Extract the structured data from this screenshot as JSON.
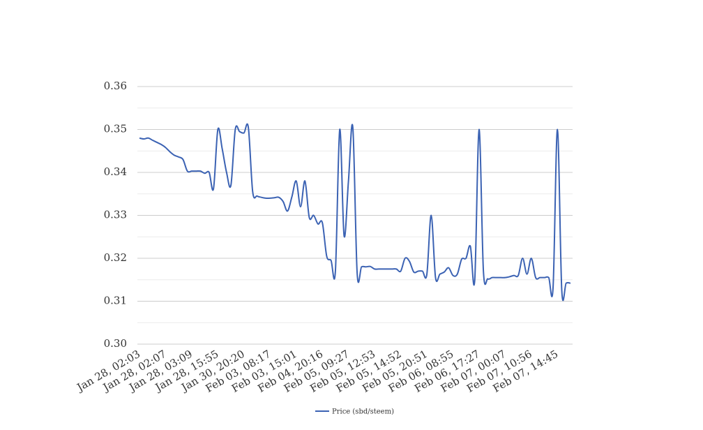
{
  "chart_data": {
    "type": "line",
    "categories": [
      "Jan 28, 02:03",
      null,
      null,
      null,
      null,
      null,
      "Jan 28, 02:07",
      null,
      null,
      null,
      null,
      null,
      "Jan 28, 03:09",
      null,
      null,
      null,
      null,
      null,
      "Jan 28, 15:55",
      null,
      null,
      null,
      null,
      null,
      "Jan 30, 20:20",
      null,
      null,
      null,
      null,
      null,
      "Feb 03, 08:17",
      null,
      null,
      null,
      null,
      null,
      "Feb 03, 15:01",
      null,
      null,
      null,
      null,
      null,
      "Feb 04, 20:16",
      null,
      null,
      null,
      null,
      null,
      "Feb 05, 09:27",
      null,
      null,
      null,
      null,
      null,
      "Feb 05, 12:53",
      null,
      null,
      null,
      null,
      null,
      "Feb 05, 14:52",
      null,
      null,
      null,
      null,
      null,
      "Feb 05, 20:51",
      null,
      null,
      null,
      null,
      null,
      "Feb 06, 08:55",
      null,
      null,
      null,
      null,
      null,
      "Feb 06, 17:27",
      null,
      null,
      null,
      null,
      null,
      "Feb 07, 00:07",
      null,
      null,
      null,
      null,
      null,
      "Feb 07, 10:56",
      null,
      null,
      null,
      null,
      null,
      "Feb 07, 14:45",
      null,
      null,
      null
    ],
    "series": [
      {
        "name": "Price (sbd/steem)",
        "color": "#3b62b3",
        "values": [
          0.348,
          0.3478,
          0.348,
          0.3475,
          0.347,
          0.3465,
          0.3458,
          0.3448,
          0.344,
          0.3436,
          0.343,
          0.3403,
          0.3403,
          0.3403,
          0.3403,
          0.3398,
          0.34,
          0.3362,
          0.35,
          0.3455,
          0.34,
          0.337,
          0.35,
          0.3495,
          0.3492,
          0.3505,
          0.3355,
          0.3345,
          0.3342,
          0.334,
          0.334,
          0.3341,
          0.3342,
          0.3332,
          0.331,
          0.3343,
          0.338,
          0.332,
          0.338,
          0.3295,
          0.33,
          0.328,
          0.3283,
          0.3205,
          0.3195,
          0.317,
          0.35,
          0.3252,
          0.338,
          0.3505,
          0.3165,
          0.318,
          0.318,
          0.3181,
          0.3175,
          0.3175,
          0.3175,
          0.3175,
          0.3175,
          0.3175,
          0.317,
          0.32,
          0.3193,
          0.3168,
          0.317,
          0.317,
          0.3162,
          0.33,
          0.3155,
          0.3163,
          0.3168,
          0.3178,
          0.316,
          0.3163,
          0.3198,
          0.32,
          0.3228,
          0.3148,
          0.35,
          0.317,
          0.3152,
          0.3155,
          0.3155,
          0.3155,
          0.3155,
          0.3157,
          0.316,
          0.316,
          0.32,
          0.3163,
          0.32,
          0.3155,
          0.3155,
          0.3155,
          0.3155,
          0.3132,
          0.35,
          0.3125,
          0.3142,
          0.3142
        ]
      }
    ],
    "ylim": [
      0.3,
      0.36
    ],
    "yticks": [
      {
        "value": 0.3,
        "label": "0.30"
      },
      {
        "value": 0.31,
        "label": "0.31"
      },
      {
        "value": 0.32,
        "label": "0.32"
      },
      {
        "value": 0.33,
        "label": "0.33"
      },
      {
        "value": 0.34,
        "label": "0.34"
      },
      {
        "value": 0.35,
        "label": "0.35"
      },
      {
        "value": 0.36,
        "label": "0.36"
      }
    ],
    "minor_yticks": [
      0.305,
      0.315,
      0.325,
      0.335,
      0.345,
      0.355
    ],
    "grid": true,
    "legend": "bottom"
  }
}
